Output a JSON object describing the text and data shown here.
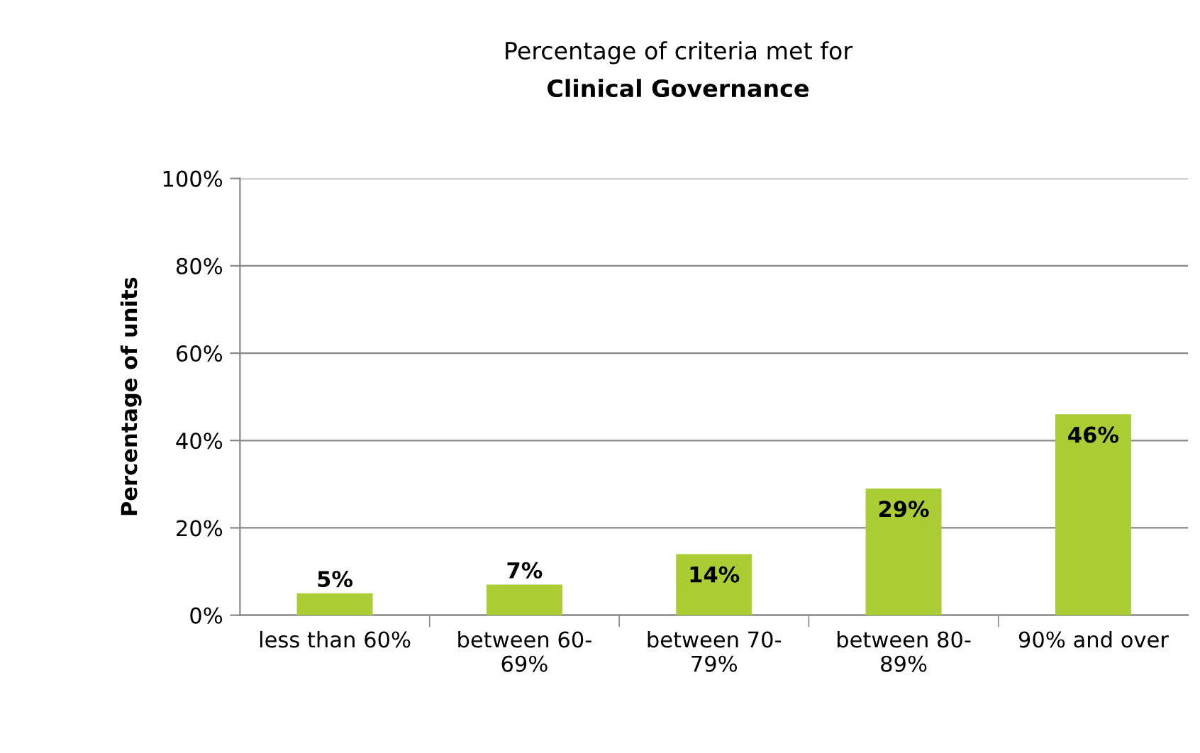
{
  "chart_data": {
    "type": "bar",
    "title": "Percentage of criteria met for",
    "subtitle": "Clinical Governance",
    "ylabel": "Percentage of units",
    "categories": [
      "less than 60%",
      "between 60-69%",
      "between 70-79%",
      "between 80-89%",
      "90% and over"
    ],
    "values": [
      5,
      7,
      14,
      29,
      46
    ],
    "value_labels": [
      "5%",
      "7%",
      "14%",
      "29%",
      "46%"
    ],
    "color": "#a9cd32",
    "ylim": [
      0,
      100
    ],
    "yticks": [
      {
        "value": 0,
        "label": "0%"
      },
      {
        "value": 20,
        "label": "20%"
      },
      {
        "value": 40,
        "label": "40%"
      },
      {
        "value": 60,
        "label": "60%"
      },
      {
        "value": 80,
        "label": "80%"
      },
      {
        "value": 100,
        "label": "100%"
      }
    ],
    "grid": "y",
    "legend": false
  }
}
